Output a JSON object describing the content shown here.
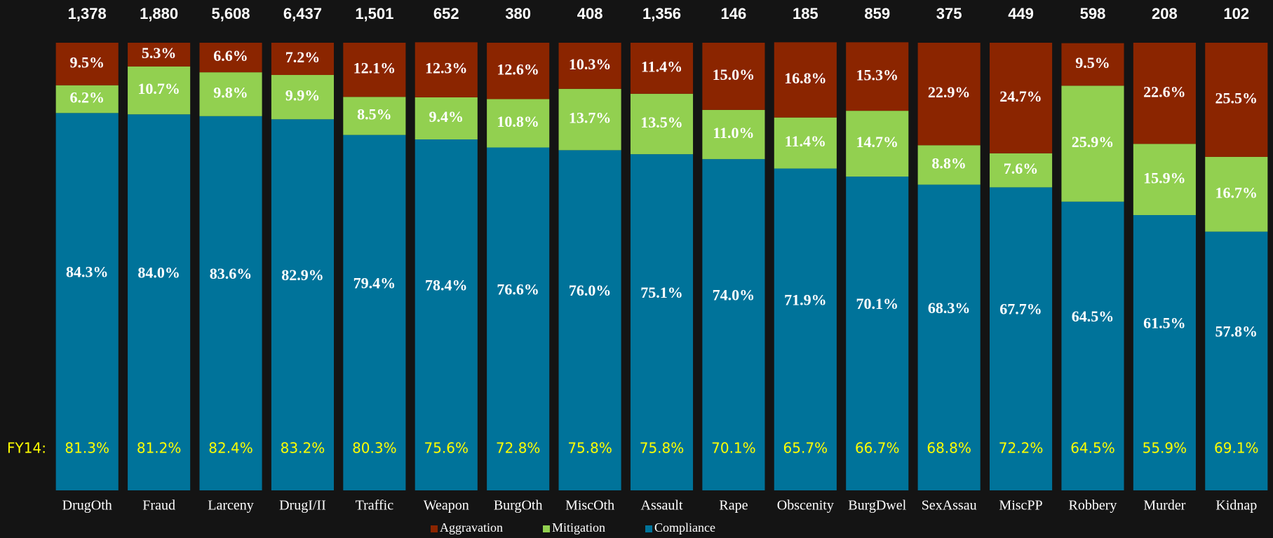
{
  "chart_data": {
    "type": "bar",
    "stacked": true,
    "categories": [
      "DrugOth",
      "Fraud",
      "Larceny",
      "DrugI/II",
      "Traffic",
      "Weapon",
      "BurgOth",
      "MiscOth",
      "Assault",
      "Rape",
      "Obscenity",
      "BurgDwel",
      "SexAssau",
      "MiscPP",
      "Robbery",
      "Murder",
      "Kidnap"
    ],
    "series": [
      {
        "name": "Compliance",
        "color": "#00739a",
        "values": [
          84.3,
          84.0,
          83.6,
          82.9,
          79.4,
          78.4,
          76.6,
          76.0,
          75.1,
          74.0,
          71.9,
          70.1,
          68.3,
          67.7,
          64.5,
          61.5,
          57.8
        ],
        "value_labels": [
          "84.3%",
          "84.0%",
          "83.6%",
          "82.9%",
          "79.4%",
          "78.4%",
          "76.6%",
          "76.0%",
          "75.1%",
          "74.0%",
          "71.9%",
          "70.1%",
          "68.3%",
          "67.7%",
          "64.5%",
          "61.5%",
          "57.8%"
        ]
      },
      {
        "name": "Mitigation",
        "color": "#92d050",
        "values": [
          6.2,
          10.7,
          9.8,
          9.9,
          8.5,
          9.4,
          10.8,
          13.7,
          13.5,
          11.0,
          11.4,
          14.7,
          8.8,
          7.6,
          25.9,
          15.9,
          16.7
        ],
        "value_labels": [
          "6.2%",
          "10.7%",
          "9.8%",
          "9.9%",
          "8.5%",
          "9.4%",
          "10.8%",
          "13.7%",
          "13.5%",
          "11.0%",
          "11.4%",
          "14.7%",
          "8.8%",
          "7.6%",
          "25.9%",
          "15.9%",
          "16.7%"
        ]
      },
      {
        "name": "Aggravation",
        "color": "#8b2500",
        "values": [
          9.5,
          5.3,
          6.6,
          7.2,
          12.1,
          12.3,
          12.6,
          10.3,
          11.4,
          15.0,
          16.8,
          15.3,
          22.9,
          24.7,
          9.5,
          22.6,
          25.5
        ],
        "value_labels": [
          "9.5%",
          "5.3%",
          "6.6%",
          "7.2%",
          "12.1%",
          "12.3%",
          "12.6%",
          "10.3%",
          "11.4%",
          "15.0%",
          "16.8%",
          "15.3%",
          "22.9%",
          "24.7%",
          "9.5%",
          "22.6%",
          "25.5%"
        ]
      }
    ],
    "totals": {
      "values": [
        1378,
        1880,
        5608,
        6437,
        1501,
        652,
        380,
        408,
        1356,
        146,
        185,
        859,
        375,
        449,
        598,
        208,
        102
      ],
      "value_labels": [
        "1,378",
        "1,880",
        "5,608",
        "6,437",
        "1,501",
        "652",
        "380",
        "408",
        "1,356",
        "146",
        "185",
        "859",
        "375",
        "449",
        "598",
        "208",
        "102"
      ]
    },
    "fy14": {
      "label": "FY14:",
      "color": "#ffff00",
      "values": [
        81.3,
        81.2,
        82.4,
        83.2,
        80.3,
        75.6,
        72.8,
        75.8,
        75.8,
        70.1,
        65.7,
        66.7,
        68.8,
        72.2,
        64.5,
        55.9,
        69.1
      ],
      "value_labels": [
        "81.3%",
        "81.2%",
        "82.4%",
        "83.2%",
        "80.3%",
        "75.6%",
        "72.8%",
        "75.8%",
        "75.8%",
        "70.1%",
        "65.7%",
        "66.7%",
        "68.8%",
        "72.2%",
        "64.5%",
        "55.9%",
        "69.1%"
      ]
    },
    "ylim": [
      0,
      100
    ]
  }
}
